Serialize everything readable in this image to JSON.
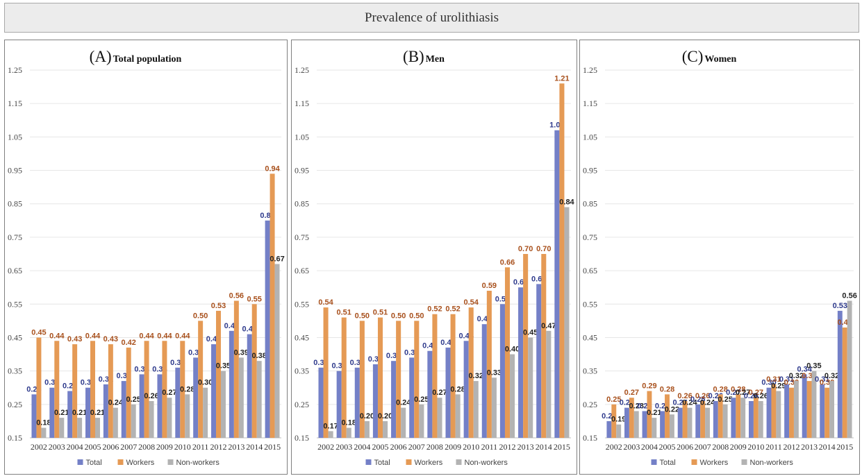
{
  "title": "Prevalence of urolithiasis",
  "colors": {
    "total": "#7480c7",
    "workers": "#e59a55",
    "nonworkers": "#b3b3b3"
  },
  "chart_data": [
    {
      "type": "bar",
      "panel_label": "(A)",
      "title": "Total population",
      "categories": [
        "2002",
        "2003",
        "2004",
        "2005",
        "2006",
        "2007",
        "2008",
        "2009",
        "2010",
        "2011",
        "2012",
        "2013",
        "2014",
        "2015"
      ],
      "series": [
        {
          "name": "Total",
          "values": [
            0.28,
            0.3,
            0.29,
            0.3,
            0.31,
            0.32,
            0.34,
            0.34,
            0.36,
            0.39,
            0.43,
            0.47,
            0.46,
            0.8
          ]
        },
        {
          "name": "Workers",
          "values": [
            0.45,
            0.44,
            0.43,
            0.44,
            0.43,
            0.42,
            0.44,
            0.44,
            0.44,
            0.5,
            0.53,
            0.56,
            0.55,
            0.94
          ]
        },
        {
          "name": "Non-workers",
          "values": [
            0.18,
            0.21,
            0.21,
            0.21,
            0.24,
            0.25,
            0.26,
            0.27,
            0.28,
            0.3,
            0.35,
            0.39,
            0.38,
            0.67
          ]
        }
      ],
      "yticks": [
        "0.15",
        "0.25",
        "0.35",
        "0.45",
        "0.55",
        "0.65",
        "0.75",
        "0.85",
        "0.95",
        "1.05",
        "1.15",
        "1.25"
      ],
      "ylim": [
        0.15,
        1.25
      ],
      "legend": "bottom",
      "grid": true
    },
    {
      "type": "bar",
      "panel_label": "(B)",
      "title": "Men",
      "categories": [
        "2002",
        "2003",
        "2004",
        "2005",
        "2006",
        "2007",
        "2008",
        "2009",
        "2010",
        "2011",
        "2012",
        "2013",
        "2014",
        "2015"
      ],
      "series": [
        {
          "name": "Total",
          "values": [
            0.36,
            0.35,
            0.36,
            0.37,
            0.38,
            0.39,
            0.41,
            0.42,
            0.44,
            0.49,
            0.55,
            0.6,
            0.61,
            1.07
          ]
        },
        {
          "name": "Workers",
          "values": [
            0.54,
            0.51,
            0.5,
            0.51,
            0.5,
            0.5,
            0.52,
            0.52,
            0.54,
            0.59,
            0.66,
            0.7,
            0.7,
            1.21
          ]
        },
        {
          "name": "Non-workers",
          "values": [
            0.17,
            0.18,
            0.2,
            0.2,
            0.24,
            0.25,
            0.27,
            0.28,
            0.32,
            0.33,
            0.4,
            0.45,
            0.47,
            0.84
          ]
        }
      ],
      "yticks": [
        "0.15",
        "0.25",
        "0.35",
        "0.45",
        "0.55",
        "0.65",
        "0.75",
        "0.85",
        "0.95",
        "1.05",
        "1.15",
        "1.25"
      ],
      "ylim": [
        0.15,
        1.25
      ],
      "legend": "bottom",
      "grid": true
    },
    {
      "type": "bar",
      "panel_label": "(C)",
      "title": "Women",
      "categories": [
        "2002",
        "2003",
        "2004",
        "2005",
        "2006",
        "2007",
        "2008",
        "2009",
        "2010",
        "2011",
        "2012",
        "2013",
        "2014",
        "2015"
      ],
      "series": [
        {
          "name": "Total",
          "values": [
            0.2,
            0.24,
            0.23,
            0.23,
            0.24,
            0.25,
            0.26,
            0.27,
            0.26,
            0.3,
            0.31,
            0.34,
            0.31,
            0.53
          ]
        },
        {
          "name": "Workers",
          "values": [
            0.25,
            0.27,
            0.29,
            0.28,
            0.26,
            0.26,
            0.28,
            0.28,
            0.27,
            0.31,
            0.3,
            0.32,
            0.3,
            0.48
          ]
        },
        {
          "name": "Non-workers",
          "values": [
            0.19,
            0.23,
            0.21,
            0.22,
            0.24,
            0.24,
            0.25,
            0.27,
            0.26,
            0.29,
            0.32,
            0.35,
            0.32,
            0.56
          ]
        }
      ],
      "yticks": [
        "0.15",
        "0.25",
        "0.35",
        "0.45",
        "0.55",
        "0.65",
        "0.75",
        "0.85",
        "0.95",
        "1.05",
        "1.15",
        "1.25"
      ],
      "ylim": [
        0.15,
        1.25
      ],
      "legend": "bottom",
      "grid": true
    }
  ]
}
